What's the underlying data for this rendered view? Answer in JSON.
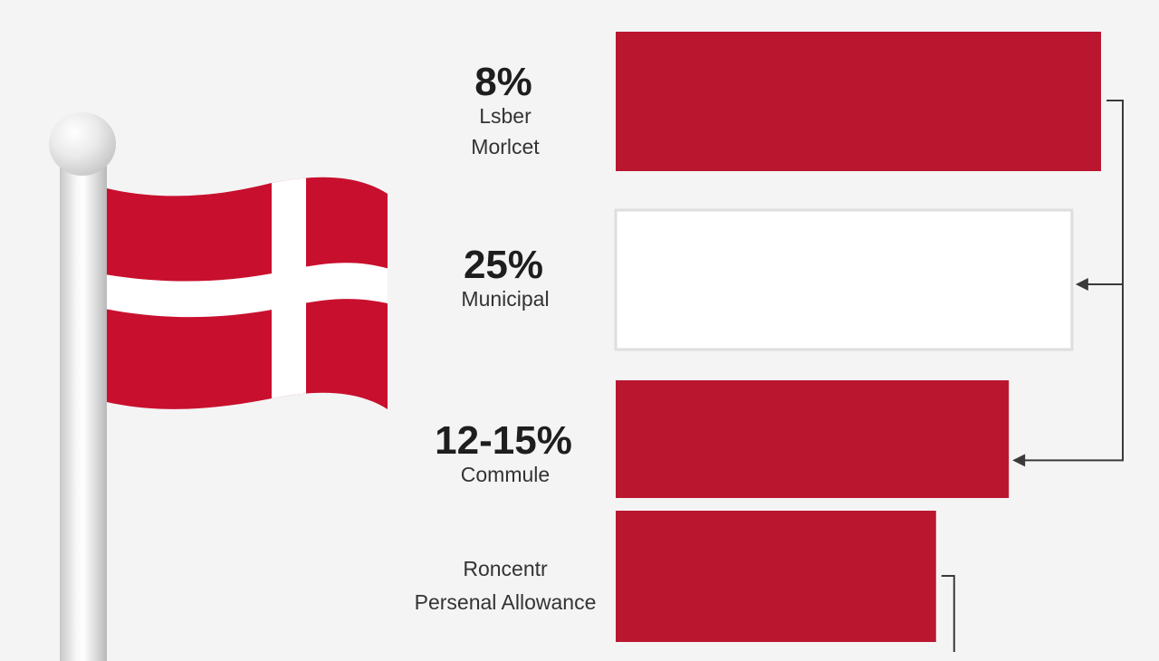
{
  "chart_data": {
    "type": "bar",
    "orientation": "horizontal",
    "categories": [
      {
        "value_label": "8%",
        "name_lines": [
          "Lsber",
          "Morlcet"
        ]
      },
      {
        "value_label": "25%",
        "name_lines": [
          "Municipal"
        ]
      },
      {
        "value_label": "12-15%",
        "name_lines": [
          "Commule"
        ]
      },
      {
        "value_label": "",
        "name_lines": [
          "Roncentr",
          "Persenal Allowance"
        ]
      }
    ],
    "values": [
      100,
      94,
      81,
      66
    ],
    "bar_colors": [
      "#bb1630",
      "#ffffff",
      "#bb1630",
      "#bb1630"
    ],
    "connectors": [
      "bar-1-to-bar-2",
      "bar-1-to-bar-3",
      "bar-4-bracket"
    ],
    "legend": "none",
    "grid": false
  },
  "flag": {
    "name": "Denmark",
    "colors": {
      "field": "#c8102e",
      "cross": "#ffffff"
    }
  },
  "colors": {
    "background": "#f4f4f4",
    "accent": "#bb1630",
    "text": "#1e1e1e"
  }
}
